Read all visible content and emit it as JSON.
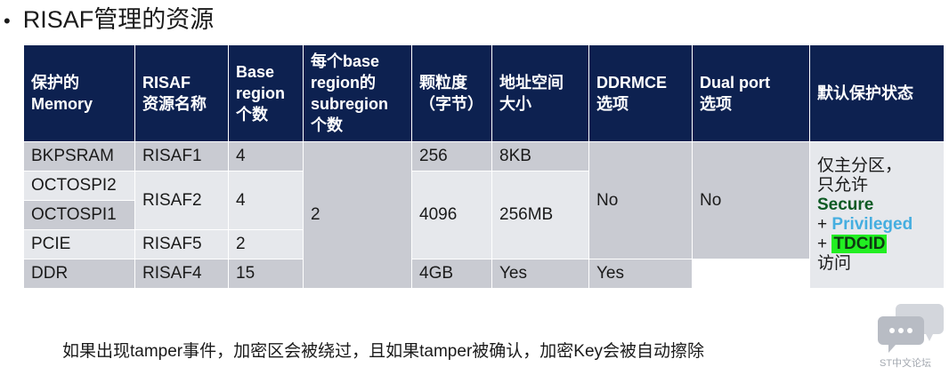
{
  "title": {
    "bullet": "•",
    "text": "RISAF管理的资源"
  },
  "table": {
    "headers": [
      [
        "保护的",
        "Memory"
      ],
      [
        "RISAF",
        "资源名称"
      ],
      [
        "Base",
        "region",
        "个数"
      ],
      [
        "每个base",
        "region的",
        "subregion",
        "个数"
      ],
      [
        "颗粒度",
        "（字节）"
      ],
      [
        "地址空间",
        "大小"
      ],
      [
        "DDRMCE",
        "选项"
      ],
      [
        "Dual port",
        "选项"
      ],
      [
        "默认保护状态"
      ]
    ],
    "memory": [
      "BKPSRAM",
      "OCTOSPI2",
      "OCTOSPI1",
      "PCIE",
      "DDR"
    ],
    "rsrc": {
      "r1": "RISAF1",
      "r2": "RISAF2",
      "r5": "RISAF5",
      "r4": "RISAF4"
    },
    "base": {
      "r1": "4",
      "r2": "4",
      "r5": "2",
      "r4": "15"
    },
    "subregion": "2",
    "granularity": {
      "a": "256",
      "b": "4096"
    },
    "size": {
      "a": "8KB",
      "b": "256MB",
      "c": "4GB"
    },
    "ddrmce": {
      "merged": "No",
      "ddr": "Yes"
    },
    "dualport": {
      "merged": "No",
      "ddr": "Yes"
    },
    "status": {
      "line1": "仅主分区，",
      "line2": "只允许",
      "secure": "Secure",
      "plus": "+",
      "privileged": "Privileged",
      "tdcid": "TDCID",
      "line_end": "访问"
    }
  },
  "footer": "如果出现tamper事件，加密区会被绕过，且如果tamper被确认，加密Key会被自动擦除",
  "watermark": {
    "icon": "chat-bubbles-icon",
    "text": "ST中文论坛"
  },
  "colors": {
    "header_bg": "#0d2150",
    "row_dark": "#c9cbd2",
    "row_light": "#e6e8ec",
    "secure": "#0e5a24",
    "privileged": "#45aee0",
    "tdcid_highlight": "#22ee22"
  }
}
